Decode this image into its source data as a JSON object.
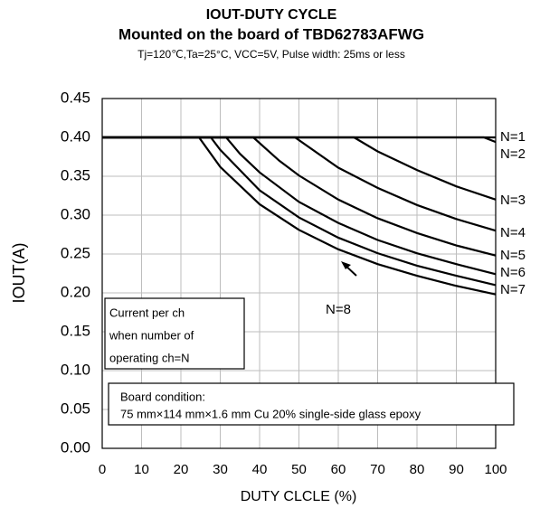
{
  "chart_data": {
    "type": "line",
    "title": "IOUT-DUTY CYCLE",
    "subtitle": "Mounted on the board of TBD62783AFWG",
    "conditions": "Tj=120℃,Ta=25°C, VCC=5V, Pulse width: 25ms or less",
    "x_label": "DUTY CLCLE (%)",
    "y_label": "IOUT(A)",
    "xlim": [
      0,
      100
    ],
    "xticks": [
      0,
      10,
      20,
      30,
      40,
      50,
      60,
      70,
      80,
      90,
      100
    ],
    "ylim": [
      0,
      0.45
    ],
    "yticks": [
      {
        "value": 0,
        "label": "0.00"
      },
      0.05,
      {
        "value": 0.1,
        "label": "0.10"
      },
      0.15,
      {
        "value": 0.2,
        "label": "0.20"
      },
      0.25,
      {
        "value": 0.3,
        "label": "0.30"
      },
      0.35,
      {
        "value": 0.4,
        "label": "0.40"
      },
      0.45
    ],
    "grid": true,
    "series": [
      {
        "name": "N=1",
        "color": "#000000",
        "x": [
          0,
          100
        ],
        "values": [
          0.4,
          0.4
        ]
      },
      {
        "name": "N=2",
        "color": "#000000",
        "x": [
          0,
          97,
          100
        ],
        "values": [
          0.4,
          0.4,
          0.394
        ]
      },
      {
        "name": "N=3",
        "color": "#000000",
        "x": [
          0,
          64,
          70,
          80,
          90,
          100
        ],
        "values": [
          0.4,
          0.4,
          0.382,
          0.358,
          0.337,
          0.32
        ]
      },
      {
        "name": "N=4",
        "color": "#000000",
        "x": [
          0,
          49,
          60,
          70,
          80,
          90,
          100
        ],
        "values": [
          0.4,
          0.4,
          0.361,
          0.335,
          0.313,
          0.295,
          0.28
        ]
      },
      {
        "name": "N=5",
        "color": "#000000",
        "x": [
          0,
          38.4,
          45,
          50,
          60,
          70,
          80,
          90,
          100
        ],
        "values": [
          0.4,
          0.4,
          0.37,
          0.351,
          0.32,
          0.296,
          0.277,
          0.261,
          0.248
        ]
      },
      {
        "name": "N=6",
        "color": "#000000",
        "x": [
          0,
          31.5,
          35,
          40,
          50,
          60,
          70,
          80,
          90,
          100
        ],
        "values": [
          0.4,
          0.4,
          0.379,
          0.355,
          0.317,
          0.29,
          0.268,
          0.251,
          0.237,
          0.224
        ]
      },
      {
        "name": "N=7",
        "color": "#000000",
        "x": [
          0,
          27.6,
          30,
          40,
          50,
          60,
          70,
          80,
          90,
          100
        ],
        "values": [
          0.4,
          0.4,
          0.384,
          0.332,
          0.297,
          0.271,
          0.251,
          0.235,
          0.222,
          0.21
        ]
      },
      {
        "name": "N=8",
        "color": "#000000",
        "x": [
          0,
          24.6,
          30,
          40,
          50,
          60,
          70,
          80,
          90,
          100
        ],
        "values": [
          0.4,
          0.4,
          0.362,
          0.314,
          0.281,
          0.256,
          0.237,
          0.222,
          0.209,
          0.198
        ]
      }
    ],
    "note_box": [
      "Current per ch",
      "when number of",
      "operating ch=N"
    ],
    "board_box": [
      "Board condition:",
      "75 mm×114 mm×1.6 mm Cu 20% single-side glass epoxy"
    ]
  }
}
